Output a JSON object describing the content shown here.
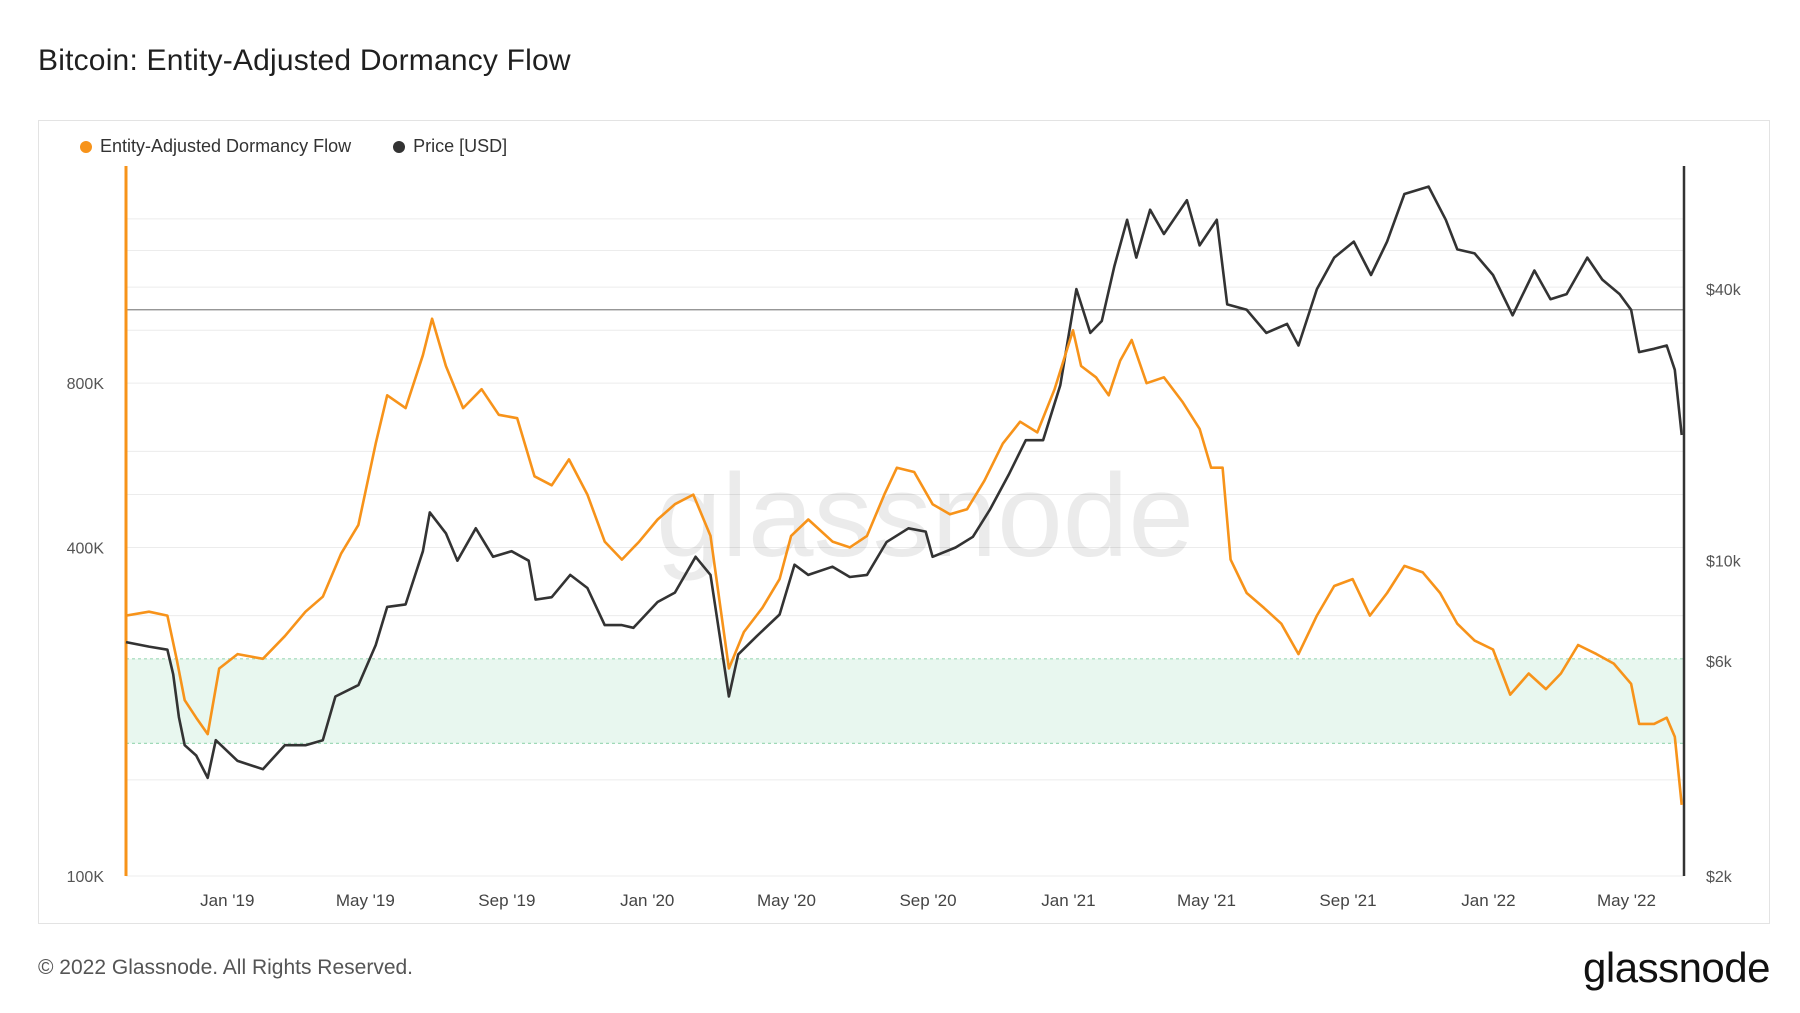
{
  "header": {
    "title": "Bitcoin: Entity-Adjusted Dormancy Flow"
  },
  "footer": {
    "copyright": "© 2022 Glassnode. All Rights Reserved.",
    "brand": "glassnode"
  },
  "watermark": "glassnode",
  "colors": {
    "dormancy": "#f7931a",
    "price": "#333333",
    "band_fill": "#e8f7ef",
    "band_line": "#9fd9b8",
    "grid": "#ececec",
    "ref_line": "#888888"
  },
  "chart_data": {
    "type": "line",
    "title": "Bitcoin: Entity-Adjusted Dormancy Flow",
    "x_ticks": [
      "Jan '19",
      "May '19",
      "Sep '19",
      "Jan '20",
      "May '20",
      "Sep '20",
      "Jan '21",
      "May '21",
      "Sep '21",
      "Jan '22",
      "May '22"
    ],
    "x_tick_dates": [
      "2019-01-01",
      "2019-05-01",
      "2019-09-01",
      "2020-01-01",
      "2020-05-01",
      "2020-09-01",
      "2021-01-01",
      "2021-05-01",
      "2021-09-01",
      "2022-01-01",
      "2022-05-01"
    ],
    "x_range": [
      "2018-10-05",
      "2022-06-20"
    ],
    "left_axis": {
      "scale": "log",
      "range": [
        100000,
        2000000
      ],
      "ticks": [
        "100K",
        "400K",
        "800K"
      ],
      "tick_values": [
        100000,
        400000,
        800000
      ]
    },
    "right_axis": {
      "scale": "log",
      "range": [
        2000,
        75000
      ],
      "ticks": [
        "$2k",
        "$6k",
        "$10k",
        "$40k"
      ],
      "tick_values": [
        2000,
        6000,
        10000,
        40000
      ]
    },
    "legend_position": "top-left",
    "grid": true,
    "reference_line_price": 36000,
    "band": {
      "axis": "left",
      "from": 175000,
      "to": 250000,
      "label": ""
    },
    "series": [
      {
        "name": "Entity-Adjusted Dormancy Flow",
        "axis": "left",
        "color": "#f7931a",
        "points": [
          [
            "2018-10-05",
            300000
          ],
          [
            "2018-10-25",
            305000
          ],
          [
            "2018-11-10",
            300000
          ],
          [
            "2018-11-18",
            250000
          ],
          [
            "2018-11-25",
            210000
          ],
          [
            "2018-12-05",
            195000
          ],
          [
            "2018-12-15",
            182000
          ],
          [
            "2018-12-25",
            240000
          ],
          [
            "2019-01-10",
            255000
          ],
          [
            "2019-02-01",
            250000
          ],
          [
            "2019-02-20",
            275000
          ],
          [
            "2019-03-10",
            305000
          ],
          [
            "2019-03-25",
            325000
          ],
          [
            "2019-04-10",
            390000
          ],
          [
            "2019-04-25",
            440000
          ],
          [
            "2019-05-10",
            620000
          ],
          [
            "2019-05-20",
            760000
          ],
          [
            "2019-06-05",
            720000
          ],
          [
            "2019-06-20",
            900000
          ],
          [
            "2019-06-28",
            1050000
          ],
          [
            "2019-07-10",
            860000
          ],
          [
            "2019-07-25",
            720000
          ],
          [
            "2019-08-10",
            780000
          ],
          [
            "2019-08-25",
            700000
          ],
          [
            "2019-09-10",
            690000
          ],
          [
            "2019-09-25",
            540000
          ],
          [
            "2019-10-10",
            520000
          ],
          [
            "2019-10-25",
            580000
          ],
          [
            "2019-11-10",
            500000
          ],
          [
            "2019-11-25",
            410000
          ],
          [
            "2019-12-10",
            380000
          ],
          [
            "2019-12-25",
            410000
          ],
          [
            "2020-01-10",
            450000
          ],
          [
            "2020-01-25",
            480000
          ],
          [
            "2020-02-10",
            500000
          ],
          [
            "2020-02-25",
            420000
          ],
          [
            "2020-03-12",
            240000
          ],
          [
            "2020-03-25",
            280000
          ],
          [
            "2020-04-10",
            310000
          ],
          [
            "2020-04-25",
            350000
          ],
          [
            "2020-05-05",
            420000
          ],
          [
            "2020-05-20",
            450000
          ],
          [
            "2020-06-10",
            410000
          ],
          [
            "2020-06-25",
            400000
          ],
          [
            "2020-07-10",
            420000
          ],
          [
            "2020-07-25",
            500000
          ],
          [
            "2020-08-05",
            560000
          ],
          [
            "2020-08-20",
            550000
          ],
          [
            "2020-09-05",
            480000
          ],
          [
            "2020-09-20",
            460000
          ],
          [
            "2020-10-05",
            470000
          ],
          [
            "2020-10-20",
            530000
          ],
          [
            "2020-11-05",
            620000
          ],
          [
            "2020-11-20",
            680000
          ],
          [
            "2020-12-05",
            650000
          ],
          [
            "2020-12-20",
            780000
          ],
          [
            "2021-01-05",
            1000000
          ],
          [
            "2021-01-12",
            860000
          ],
          [
            "2021-01-25",
            820000
          ],
          [
            "2021-02-05",
            760000
          ],
          [
            "2021-02-15",
            880000
          ],
          [
            "2021-02-25",
            960000
          ],
          [
            "2021-03-10",
            800000
          ],
          [
            "2021-03-25",
            820000
          ],
          [
            "2021-04-10",
            740000
          ],
          [
            "2021-04-25",
            660000
          ],
          [
            "2021-05-05",
            560000
          ],
          [
            "2021-05-15",
            560000
          ],
          [
            "2021-05-22",
            380000
          ],
          [
            "2021-06-05",
            330000
          ],
          [
            "2021-06-20",
            310000
          ],
          [
            "2021-07-05",
            290000
          ],
          [
            "2021-07-20",
            255000
          ],
          [
            "2021-08-05",
            300000
          ],
          [
            "2021-08-20",
            340000
          ],
          [
            "2021-09-05",
            350000
          ],
          [
            "2021-09-20",
            300000
          ],
          [
            "2021-10-05",
            330000
          ],
          [
            "2021-10-20",
            370000
          ],
          [
            "2021-11-05",
            360000
          ],
          [
            "2021-11-20",
            330000
          ],
          [
            "2021-12-05",
            290000
          ],
          [
            "2021-12-20",
            270000
          ],
          [
            "2022-01-05",
            260000
          ],
          [
            "2022-01-20",
            215000
          ],
          [
            "2022-02-05",
            235000
          ],
          [
            "2022-02-20",
            220000
          ],
          [
            "2022-03-05",
            235000
          ],
          [
            "2022-03-20",
            265000
          ],
          [
            "2022-04-05",
            255000
          ],
          [
            "2022-04-20",
            245000
          ],
          [
            "2022-05-05",
            225000
          ],
          [
            "2022-05-12",
            190000
          ],
          [
            "2022-05-25",
            190000
          ],
          [
            "2022-06-05",
            195000
          ],
          [
            "2022-06-12",
            180000
          ],
          [
            "2022-06-18",
            135000
          ]
        ]
      },
      {
        "name": "Price [USD]",
        "axis": "right",
        "color": "#333333",
        "points": [
          [
            "2018-10-05",
            6600
          ],
          [
            "2018-10-25",
            6450
          ],
          [
            "2018-11-10",
            6350
          ],
          [
            "2018-11-15",
            5600
          ],
          [
            "2018-11-20",
            4500
          ],
          [
            "2018-11-25",
            3900
          ],
          [
            "2018-12-05",
            3700
          ],
          [
            "2018-12-15",
            3300
          ],
          [
            "2018-12-22",
            4000
          ],
          [
            "2019-01-10",
            3600
          ],
          [
            "2019-02-01",
            3450
          ],
          [
            "2019-02-20",
            3900
          ],
          [
            "2019-03-10",
            3900
          ],
          [
            "2019-03-25",
            4000
          ],
          [
            "2019-04-05",
            5000
          ],
          [
            "2019-04-25",
            5300
          ],
          [
            "2019-05-10",
            6500
          ],
          [
            "2019-05-20",
            7900
          ],
          [
            "2019-06-05",
            8000
          ],
          [
            "2019-06-20",
            10500
          ],
          [
            "2019-06-26",
            12800
          ],
          [
            "2019-07-10",
            11500
          ],
          [
            "2019-07-20",
            10000
          ],
          [
            "2019-08-05",
            11800
          ],
          [
            "2019-08-20",
            10200
          ],
          [
            "2019-09-05",
            10500
          ],
          [
            "2019-09-20",
            10000
          ],
          [
            "2019-09-26",
            8200
          ],
          [
            "2019-10-10",
            8300
          ],
          [
            "2019-10-26",
            9300
          ],
          [
            "2019-11-10",
            8700
          ],
          [
            "2019-11-25",
            7200
          ],
          [
            "2019-12-10",
            7200
          ],
          [
            "2019-12-20",
            7100
          ],
          [
            "2020-01-10",
            8100
          ],
          [
            "2020-01-25",
            8500
          ],
          [
            "2020-02-12",
            10200
          ],
          [
            "2020-02-25",
            9300
          ],
          [
            "2020-03-12",
            5000
          ],
          [
            "2020-03-20",
            6200
          ],
          [
            "2020-04-05",
            6800
          ],
          [
            "2020-04-25",
            7600
          ],
          [
            "2020-05-08",
            9800
          ],
          [
            "2020-05-20",
            9300
          ],
          [
            "2020-06-10",
            9700
          ],
          [
            "2020-06-25",
            9200
          ],
          [
            "2020-07-10",
            9300
          ],
          [
            "2020-07-27",
            11000
          ],
          [
            "2020-08-15",
            11800
          ],
          [
            "2020-08-30",
            11600
          ],
          [
            "2020-09-05",
            10200
          ],
          [
            "2020-09-25",
            10700
          ],
          [
            "2020-10-10",
            11300
          ],
          [
            "2020-10-25",
            13000
          ],
          [
            "2020-11-10",
            15500
          ],
          [
            "2020-11-25",
            18500
          ],
          [
            "2020-12-10",
            18500
          ],
          [
            "2020-12-25",
            24500
          ],
          [
            "2021-01-08",
            40000
          ],
          [
            "2021-01-20",
            32000
          ],
          [
            "2021-01-30",
            34000
          ],
          [
            "2021-02-10",
            45000
          ],
          [
            "2021-02-21",
            57000
          ],
          [
            "2021-03-01",
            47000
          ],
          [
            "2021-03-13",
            60000
          ],
          [
            "2021-03-25",
            53000
          ],
          [
            "2021-04-14",
            63000
          ],
          [
            "2021-04-25",
            50000
          ],
          [
            "2021-05-10",
            57000
          ],
          [
            "2021-05-19",
            37000
          ],
          [
            "2021-06-05",
            36000
          ],
          [
            "2021-06-22",
            32000
          ],
          [
            "2021-07-10",
            33500
          ],
          [
            "2021-07-20",
            30000
          ],
          [
            "2021-08-05",
            40000
          ],
          [
            "2021-08-20",
            47000
          ],
          [
            "2021-09-06",
            51000
          ],
          [
            "2021-09-21",
            43000
          ],
          [
            "2021-10-05",
            51000
          ],
          [
            "2021-10-20",
            65000
          ],
          [
            "2021-11-10",
            67500
          ],
          [
            "2021-11-25",
            57000
          ],
          [
            "2021-12-05",
            49000
          ],
          [
            "2021-12-20",
            48000
          ],
          [
            "2022-01-05",
            43000
          ],
          [
            "2022-01-22",
            35000
          ],
          [
            "2022-02-10",
            44000
          ],
          [
            "2022-02-24",
            38000
          ],
          [
            "2022-03-10",
            39000
          ],
          [
            "2022-03-28",
            47000
          ],
          [
            "2022-04-10",
            42000
          ],
          [
            "2022-04-25",
            39000
          ],
          [
            "2022-05-05",
            36000
          ],
          [
            "2022-05-12",
            29000
          ],
          [
            "2022-05-25",
            29500
          ],
          [
            "2022-06-05",
            30000
          ],
          [
            "2022-06-12",
            26500
          ],
          [
            "2022-06-18",
            19000
          ]
        ]
      }
    ]
  }
}
